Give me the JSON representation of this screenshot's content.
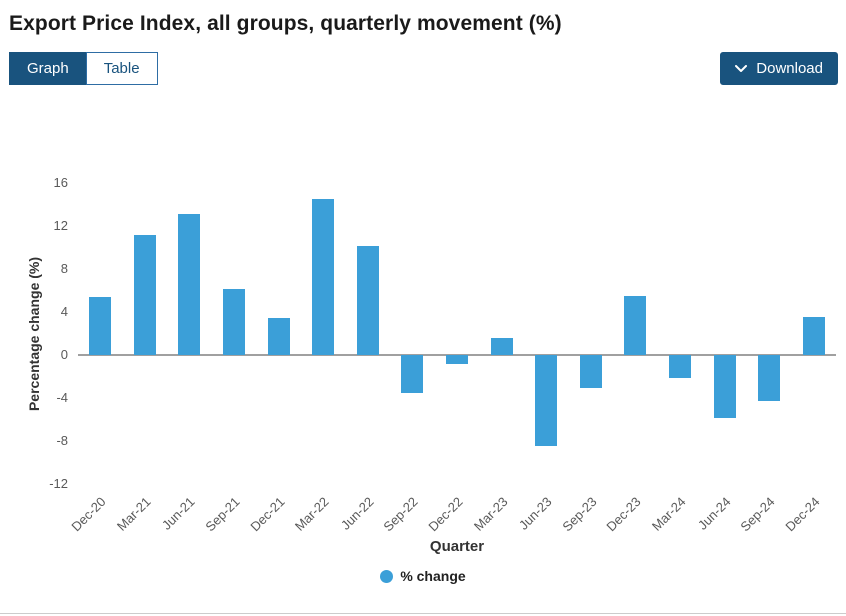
{
  "header": {
    "title": "Export Price Index, all groups, quarterly movement (%)"
  },
  "tabs": {
    "graph_label": "Graph",
    "table_label": "Table"
  },
  "download": {
    "label": "Download"
  },
  "colors": {
    "primary_blue": "#19537e",
    "bar_blue": "#3b9fd8",
    "zero_line_gray": "#a0a0a0"
  },
  "chart_data": {
    "type": "bar",
    "title": "Export Price Index, all groups, quarterly movement (%)",
    "categories": [
      "Dec-20",
      "Mar-21",
      "Jun-21",
      "Sep-21",
      "Dec-21",
      "Mar-22",
      "Jun-22",
      "Sep-22",
      "Dec-22",
      "Mar-23",
      "Jun-23",
      "Sep-23",
      "Dec-23",
      "Mar-24",
      "Jun-24",
      "Sep-24",
      "Dec-24"
    ],
    "values": [
      5.4,
      11.2,
      13.1,
      6.1,
      3.4,
      14.5,
      10.1,
      -3.5,
      -0.8,
      1.6,
      -8.5,
      -3.1,
      5.5,
      -2.1,
      -5.9,
      -4.3,
      3.5
    ],
    "xlabel": "Quarter",
    "ylabel": "Percentage change (%)",
    "ylim": [
      -12,
      16
    ],
    "ytick_step": 4,
    "grid": false,
    "legend_label": "% change",
    "legend_position": "bottom",
    "bar_color": "#3b9fd8"
  }
}
